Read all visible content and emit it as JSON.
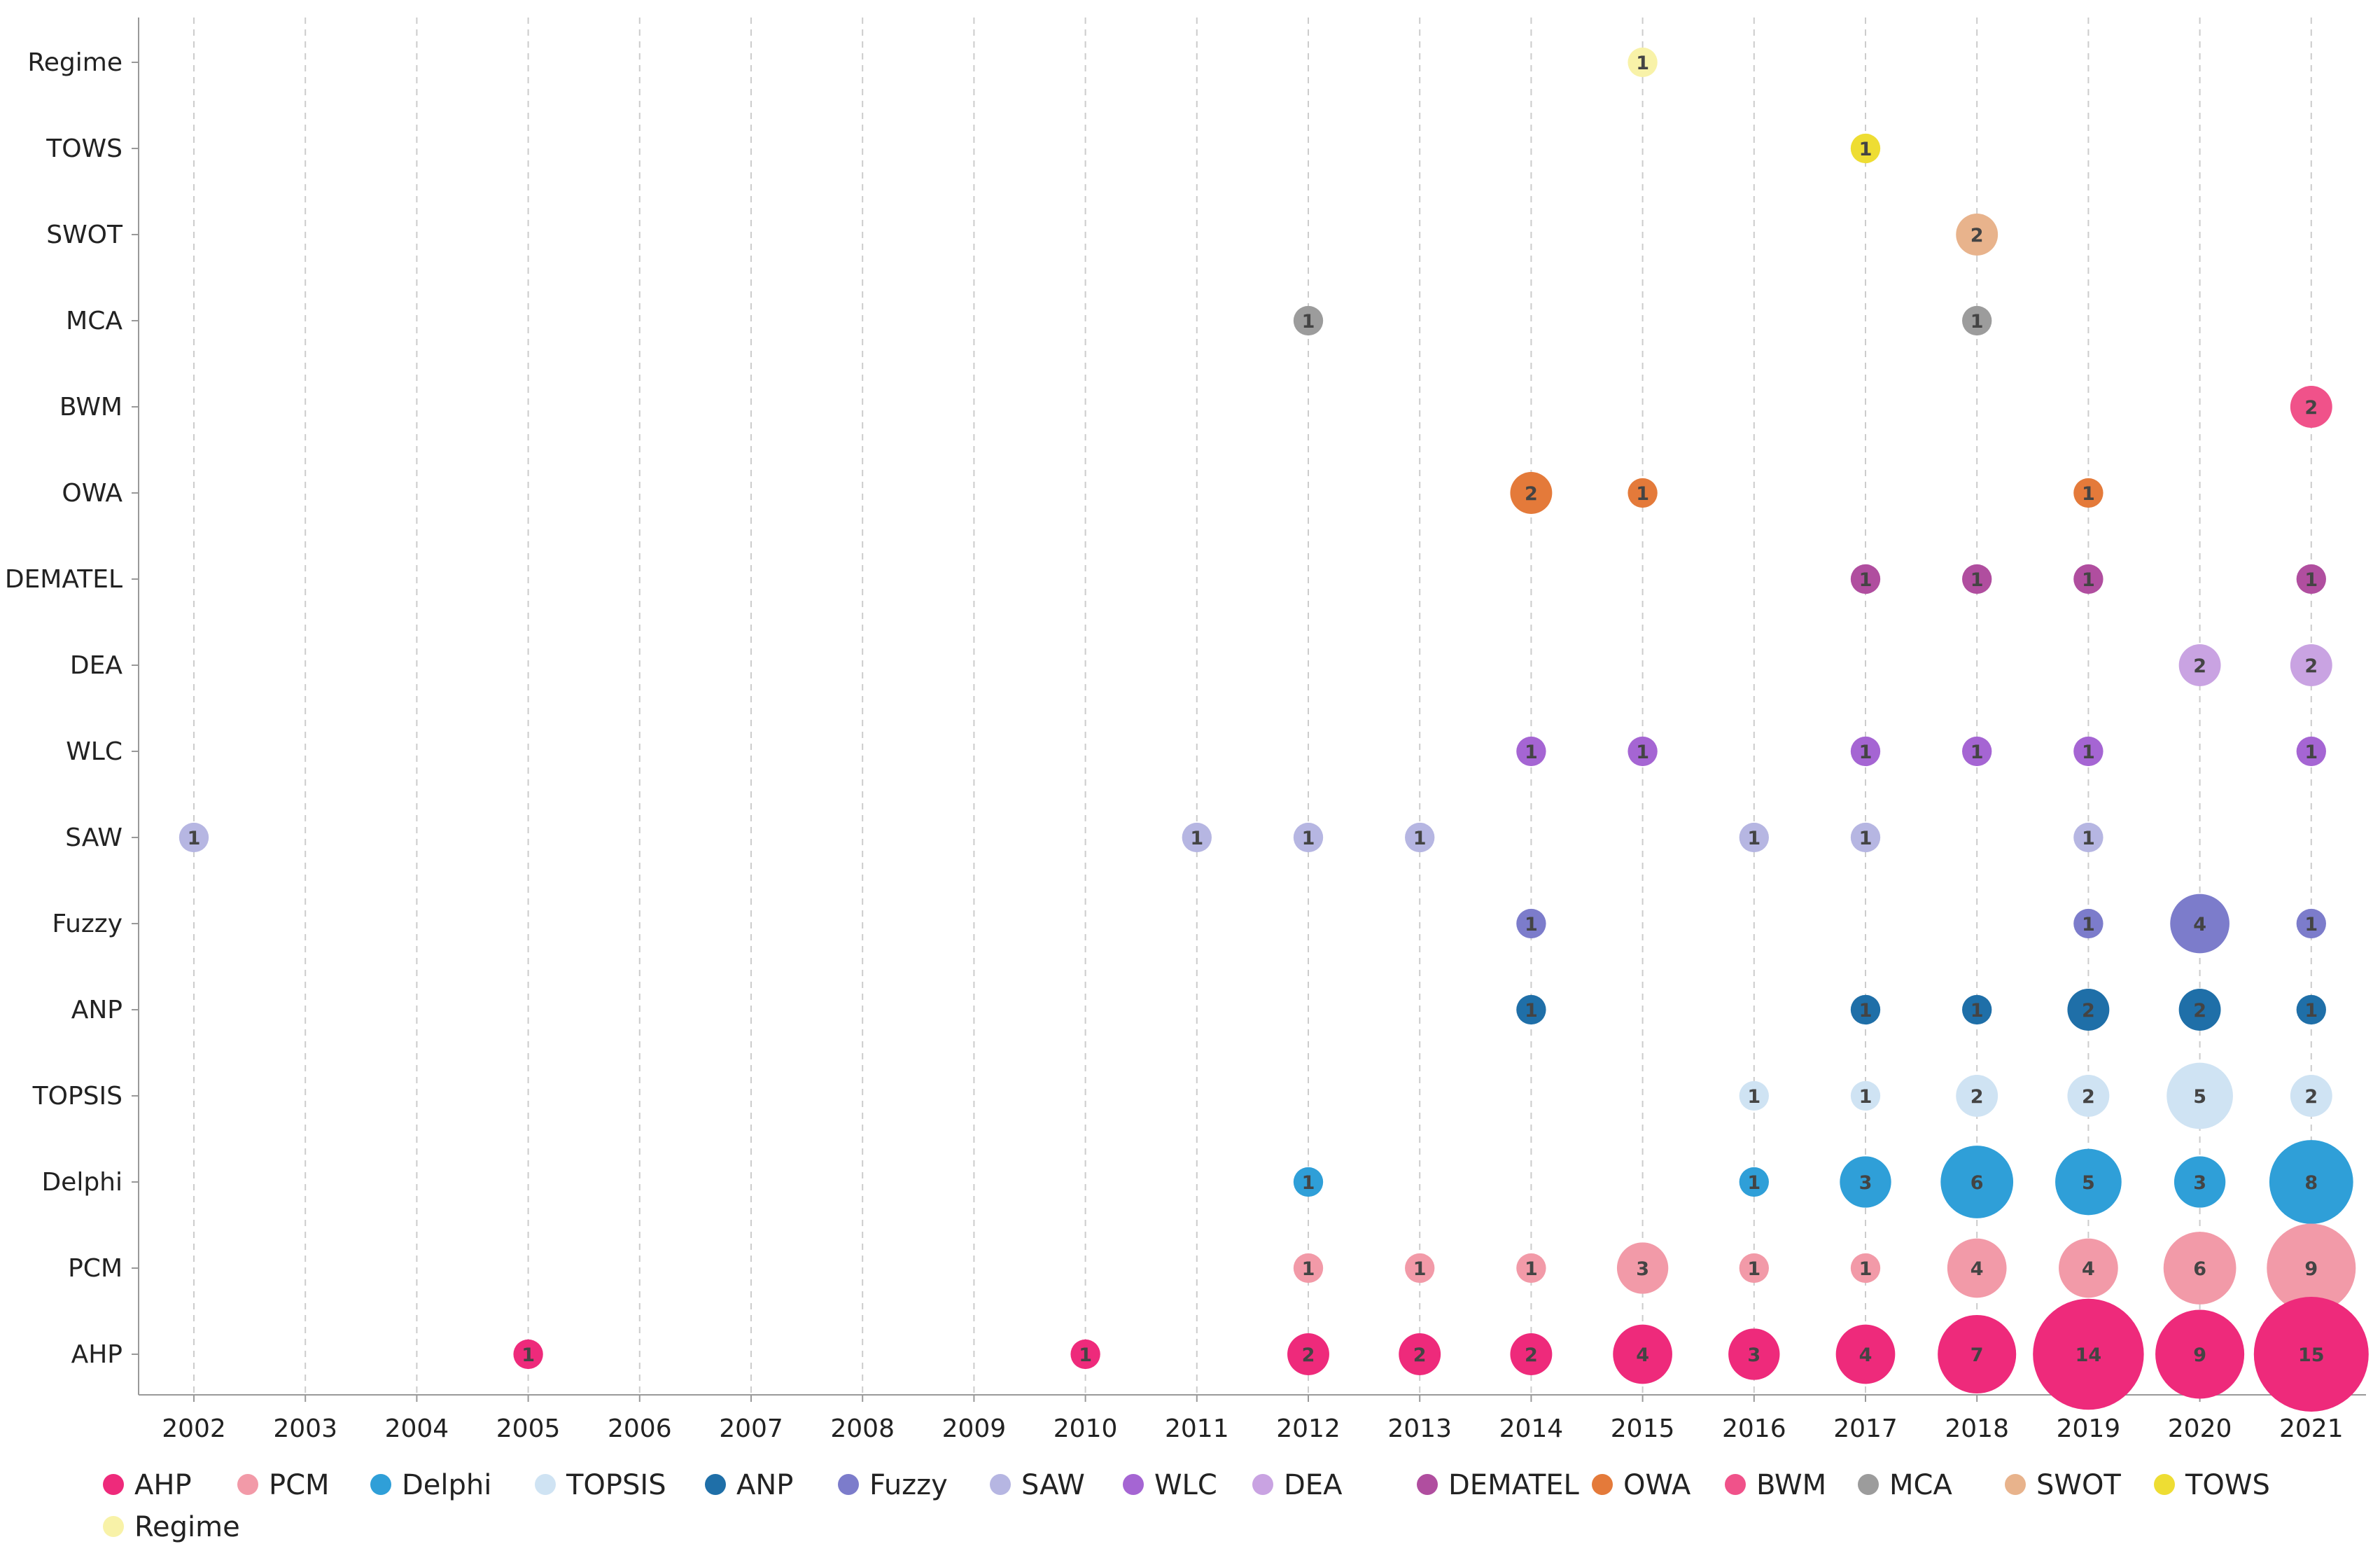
{
  "chart_data": {
    "type": "scatter",
    "x": [
      "2002",
      "2003",
      "2004",
      "2005",
      "2006",
      "2007",
      "2008",
      "2009",
      "2010",
      "2011",
      "2012",
      "2013",
      "2014",
      "2015",
      "2016",
      "2017",
      "2018",
      "2019",
      "2020",
      "2021"
    ],
    "categories": [
      "Regime",
      "TOWS",
      "SWOT",
      "MCA",
      "BWM",
      "OWA",
      "DEMATEL",
      "DEA",
      "WLC",
      "SAW",
      "Fuzzy",
      "ANP",
      "TOPSIS",
      "Delphi",
      "PCM",
      "AHP"
    ],
    "legend": [
      "AHP",
      "PCM",
      "Delphi",
      "TOPSIS",
      "ANP",
      "Fuzzy",
      "SAW",
      "WLC",
      "DEA",
      "DEMATEL",
      "OWA",
      "BWM",
      "MCA",
      "SWOT",
      "TOWS",
      "Regime"
    ],
    "legend_position": "bottom",
    "grid": "vertical dashed",
    "colors": {
      "AHP": "#EE2A7B",
      "PCM": "#F29AA8",
      "Delphi": "#2F9FD8",
      "TOPSIS": "#CFE3F3",
      "ANP": "#1F6FA8",
      "Fuzzy": "#7C7CCB",
      "SAW": "#B6B6E2",
      "WLC": "#A565D3",
      "DEA": "#C9A3E2",
      "DEMATEL": "#B04E9F",
      "OWA": "#E47A3A",
      "BWM": "#F0528A",
      "MCA": "#9C9C9C",
      "SWOT": "#E8B38C",
      "TOWS": "#EEDD33",
      "Regime": "#F8F2A8"
    },
    "series": [
      {
        "name": "Regime",
        "points": [
          {
            "x": "2015",
            "value": 1
          }
        ]
      },
      {
        "name": "TOWS",
        "points": [
          {
            "x": "2017",
            "value": 1
          }
        ]
      },
      {
        "name": "SWOT",
        "points": [
          {
            "x": "2018",
            "value": 2
          }
        ]
      },
      {
        "name": "MCA",
        "points": [
          {
            "x": "2012",
            "value": 1
          },
          {
            "x": "2018",
            "value": 1
          }
        ]
      },
      {
        "name": "BWM",
        "points": [
          {
            "x": "2021",
            "value": 2
          }
        ]
      },
      {
        "name": "OWA",
        "points": [
          {
            "x": "2014",
            "value": 2
          },
          {
            "x": "2015",
            "value": 1
          },
          {
            "x": "2019",
            "value": 1
          }
        ]
      },
      {
        "name": "DEMATEL",
        "points": [
          {
            "x": "2017",
            "value": 1
          },
          {
            "x": "2018",
            "value": 1
          },
          {
            "x": "2019",
            "value": 1
          },
          {
            "x": "2021",
            "value": 1
          }
        ]
      },
      {
        "name": "DEA",
        "points": [
          {
            "x": "2020",
            "value": 2
          },
          {
            "x": "2021",
            "value": 2
          }
        ]
      },
      {
        "name": "WLC",
        "points": [
          {
            "x": "2014",
            "value": 1
          },
          {
            "x": "2015",
            "value": 1
          },
          {
            "x": "2017",
            "value": 1
          },
          {
            "x": "2018",
            "value": 1
          },
          {
            "x": "2019",
            "value": 1
          },
          {
            "x": "2021",
            "value": 1
          }
        ]
      },
      {
        "name": "SAW",
        "points": [
          {
            "x": "2002",
            "value": 1
          },
          {
            "x": "2011",
            "value": 1
          },
          {
            "x": "2012",
            "value": 1
          },
          {
            "x": "2013",
            "value": 1
          },
          {
            "x": "2016",
            "value": 1
          },
          {
            "x": "2017",
            "value": 1
          },
          {
            "x": "2019",
            "value": 1
          }
        ]
      },
      {
        "name": "Fuzzy",
        "points": [
          {
            "x": "2014",
            "value": 1
          },
          {
            "x": "2019",
            "value": 1
          },
          {
            "x": "2020",
            "value": 4
          },
          {
            "x": "2021",
            "value": 1
          }
        ]
      },
      {
        "name": "ANP",
        "points": [
          {
            "x": "2014",
            "value": 1
          },
          {
            "x": "2017",
            "value": 1
          },
          {
            "x": "2018",
            "value": 1
          },
          {
            "x": "2019",
            "value": 2
          },
          {
            "x": "2020",
            "value": 2
          },
          {
            "x": "2021",
            "value": 1
          }
        ]
      },
      {
        "name": "TOPSIS",
        "points": [
          {
            "x": "2016",
            "value": 1
          },
          {
            "x": "2017",
            "value": 1
          },
          {
            "x": "2018",
            "value": 2
          },
          {
            "x": "2019",
            "value": 2
          },
          {
            "x": "2020",
            "value": 5
          },
          {
            "x": "2021",
            "value": 2
          }
        ]
      },
      {
        "name": "Delphi",
        "points": [
          {
            "x": "2012",
            "value": 1
          },
          {
            "x": "2016",
            "value": 1
          },
          {
            "x": "2017",
            "value": 3
          },
          {
            "x": "2018",
            "value": 6
          },
          {
            "x": "2019",
            "value": 5
          },
          {
            "x": "2020",
            "value": 3
          },
          {
            "x": "2021",
            "value": 8
          }
        ]
      },
      {
        "name": "PCM",
        "points": [
          {
            "x": "2012",
            "value": 1
          },
          {
            "x": "2013",
            "value": 1
          },
          {
            "x": "2014",
            "value": 1
          },
          {
            "x": "2015",
            "value": 3
          },
          {
            "x": "2016",
            "value": 1
          },
          {
            "x": "2017",
            "value": 1
          },
          {
            "x": "2018",
            "value": 4
          },
          {
            "x": "2019",
            "value": 4
          },
          {
            "x": "2020",
            "value": 6
          },
          {
            "x": "2021",
            "value": 9
          }
        ]
      },
      {
        "name": "AHP",
        "points": [
          {
            "x": "2005",
            "value": 1
          },
          {
            "x": "2010",
            "value": 1
          },
          {
            "x": "2012",
            "value": 2
          },
          {
            "x": "2013",
            "value": 2
          },
          {
            "x": "2014",
            "value": 2
          },
          {
            "x": "2015",
            "value": 4
          },
          {
            "x": "2016",
            "value": 3
          },
          {
            "x": "2017",
            "value": 4
          },
          {
            "x": "2018",
            "value": 7
          },
          {
            "x": "2019",
            "value": 14
          },
          {
            "x": "2020",
            "value": 9
          },
          {
            "x": "2021",
            "value": 15
          }
        ]
      }
    ]
  }
}
